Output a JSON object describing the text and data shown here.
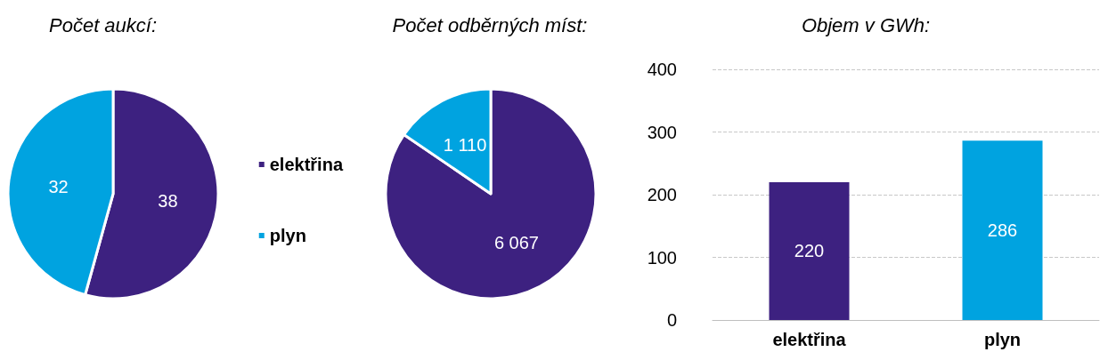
{
  "chart_data": [
    {
      "type": "pie",
      "title": "Počet aukcí:",
      "categories": [
        "elektřina",
        "plyn"
      ],
      "values": [
        38,
        32
      ],
      "colors": [
        "#3d2180",
        "#00a3e0"
      ],
      "data_labels": true,
      "legend": "right"
    },
    {
      "type": "pie",
      "title": "Počet odběrných míst:",
      "categories": [
        null,
        null
      ],
      "values": [
        6067,
        1110
      ],
      "colors": [
        "#3d2180",
        "#00a3e0"
      ],
      "value_labels": [
        "6 067",
        "1 110"
      ]
    },
    {
      "type": "bar",
      "title": "Objem v GWh:",
      "categories": [
        "elektřina",
        "plyn"
      ],
      "values": [
        220,
        286
      ],
      "colors": [
        "#3d2180",
        "#00a3e0"
      ],
      "ylim": [
        0,
        400
      ],
      "yticks": [
        0,
        100,
        200,
        300,
        400
      ],
      "grid": "y",
      "data_labels": true
    }
  ]
}
